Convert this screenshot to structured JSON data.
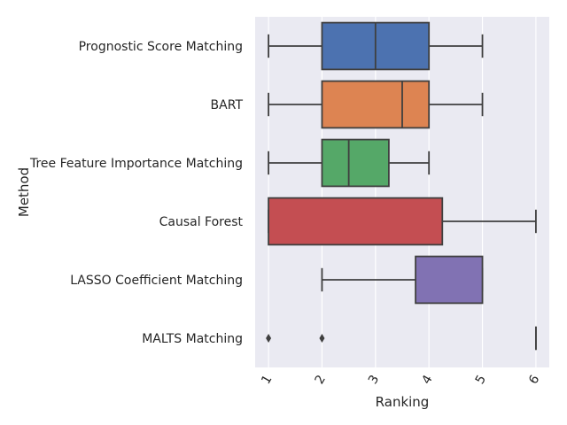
{
  "chart_data": {
    "type": "boxplot",
    "orientation": "horizontal",
    "title": "",
    "xlabel": "Ranking",
    "ylabel": "Method",
    "xlim": [
      0.75,
      6.25
    ],
    "xticks": [
      1,
      2,
      3,
      4,
      5,
      6
    ],
    "xtick_labels": [
      "1",
      "2",
      "3",
      "4",
      "5",
      "6"
    ],
    "xtick_rotation": 60,
    "grid": true,
    "background": "#eaeaf2",
    "categories": [
      {
        "label": "Prognostic Score Matching",
        "color": "#4c72b0",
        "whisker_low": 1,
        "q1": 2,
        "median": 3,
        "q3": 4,
        "whisker_high": 5,
        "outliers": []
      },
      {
        "label": "BART",
        "color": "#dd8452",
        "whisker_low": 1,
        "q1": 2,
        "median": 3.5,
        "q3": 4,
        "whisker_high": 5,
        "outliers": []
      },
      {
        "label": "Tree Feature Importance Matching",
        "color": "#55a868",
        "whisker_low": 1,
        "q1": 2,
        "median": 2.5,
        "q3": 3.25,
        "whisker_high": 4,
        "outliers": []
      },
      {
        "label": "Causal Forest",
        "color": "#c44e52",
        "whisker_low": 1,
        "q1": 1,
        "median": 1,
        "q3": 4.25,
        "whisker_high": 6,
        "outliers": []
      },
      {
        "label": "LASSO Coefficient Matching",
        "color": "#8172b3",
        "whisker_low": 2,
        "q1": 3.75,
        "median": 5,
        "q3": 5,
        "whisker_high": 5,
        "outliers": []
      },
      {
        "label": "MALTS Matching",
        "color": "#937860",
        "whisker_low": 6,
        "q1": 6,
        "median": 6,
        "q3": 6,
        "whisker_high": 6,
        "outliers": [
          1,
          2
        ]
      }
    ]
  }
}
